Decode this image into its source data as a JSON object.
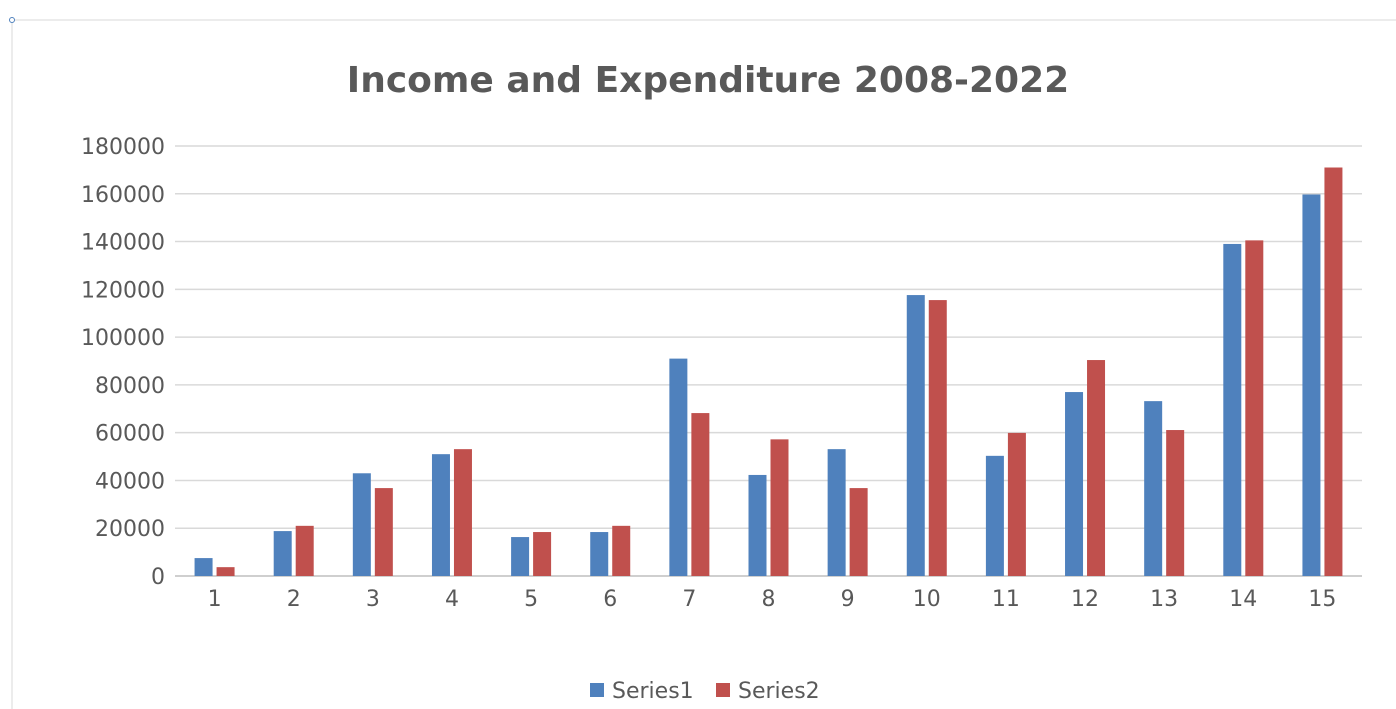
{
  "chart_data": {
    "type": "bar",
    "title": "Income and Expenditure 2008-2022",
    "xlabel": "",
    "ylabel": "",
    "categories": [
      "1",
      "2",
      "3",
      "4",
      "5",
      "6",
      "7",
      "8",
      "9",
      "10",
      "11",
      "12",
      "13",
      "14",
      "15"
    ],
    "series": [
      {
        "name": "Series1",
        "color": "#4f81bd",
        "values": [
          7500,
          18800,
          43000,
          51000,
          16300,
          18400,
          91000,
          42300,
          53100,
          117600,
          50300,
          77000,
          73200,
          139000,
          159700
        ]
      },
      {
        "name": "Series2",
        "color": "#c0504d",
        "values": [
          3700,
          21000,
          36800,
          53100,
          18400,
          21000,
          68200,
          57200,
          36800,
          115500,
          59900,
          90400,
          61100,
          140500,
          171000
        ]
      }
    ],
    "ylim": [
      0,
      180000
    ],
    "yticks": [
      0,
      20000,
      40000,
      60000,
      80000,
      100000,
      120000,
      140000,
      160000,
      180000
    ],
    "grid": true,
    "legend_position": "bottom"
  }
}
